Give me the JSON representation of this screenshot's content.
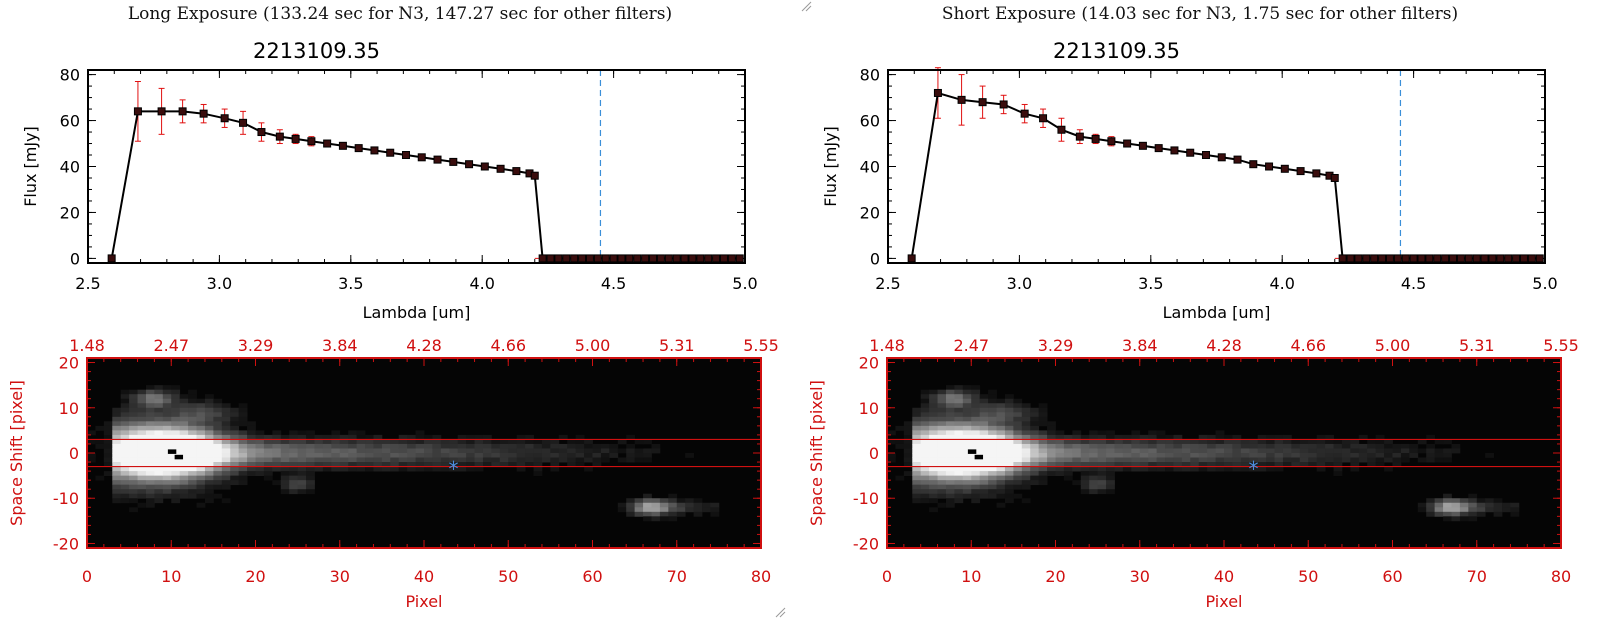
{
  "panels": [
    {
      "header": "Long Exposure (133.24 sec for N3, 147.27 sec for other filters)",
      "title": "2213109.35",
      "chart_data": {
        "type": "line",
        "xlabel": "Lambda [um]",
        "ylabel": "Flux [mJy]",
        "xlim": [
          2.5,
          5.0
        ],
        "ylim": [
          -2,
          82
        ],
        "xticks": [
          "2.5",
          "3.0",
          "3.5",
          "4.0",
          "4.5",
          "5.0"
        ],
        "yticks": [
          "0",
          "20",
          "40",
          "60",
          "80"
        ],
        "marker_line_x": 4.45,
        "series": [
          {
            "x": [
              2.59,
              2.69,
              2.78,
              2.86,
              2.94,
              3.02,
              3.09,
              3.16,
              3.23,
              3.29,
              3.35,
              3.41,
              3.47,
              3.53,
              3.59,
              3.65,
              3.71,
              3.77,
              3.83,
              3.89,
              3.95,
              4.01,
              4.07,
              4.13,
              4.18,
              4.2,
              4.23,
              4.26,
              4.29,
              4.32,
              4.35,
              4.38,
              4.41,
              4.44,
              4.47,
              4.5,
              4.53,
              4.56,
              4.59,
              4.62,
              4.65,
              4.68,
              4.71,
              4.74,
              4.77,
              4.8,
              4.83,
              4.86,
              4.89,
              4.92,
              4.95,
              4.98
            ],
            "y": [
              0,
              64,
              64,
              64,
              63,
              61,
              59,
              55,
              53,
              52,
              51,
              50,
              49,
              48,
              47,
              46,
              45,
              44,
              43,
              42,
              41,
              40,
              39,
              38,
              37,
              36,
              0,
              0,
              0,
              0,
              0,
              0,
              0,
              0,
              0,
              0,
              0,
              0,
              0,
              0,
              0,
              0,
              0,
              0,
              0,
              0,
              0,
              0,
              0,
              0,
              0,
              0
            ],
            "err": [
              0,
              13,
              10,
              5,
              4,
              4,
              5,
              4,
              3,
              2,
              2,
              1,
              1,
              1,
              1,
              1,
              1,
              1,
              1,
              1,
              1,
              1,
              1,
              1,
              1,
              1,
              0,
              0,
              0,
              0,
              0,
              0,
              0,
              0,
              0,
              0,
              0,
              0,
              0,
              0,
              0,
              0,
              0,
              0,
              0,
              0,
              0,
              0,
              0,
              0,
              0,
              0
            ]
          }
        ]
      },
      "image_plot": {
        "type": "heatmap",
        "xlabel": "Pixel",
        "ylabel": "Space Shift [pixel]",
        "xlim": [
          0,
          80
        ],
        "ylim": [
          -21,
          21
        ],
        "xticks": [
          "0",
          "10",
          "20",
          "30",
          "40",
          "50",
          "60",
          "70",
          "80"
        ],
        "yticks": [
          "20",
          "10",
          "0",
          "-10",
          "-20"
        ],
        "top_ticks": [
          "1.48",
          "2.47",
          "3.29",
          "3.84",
          "4.28",
          "4.66",
          "5.00",
          "5.31",
          "5.55"
        ],
        "aperture_lines_y": [
          3,
          -3
        ],
        "marker": {
          "x": 43.5,
          "y": -3.5,
          "symbol": "*"
        }
      }
    },
    {
      "header": "Short Exposure (14.03 sec for N3, 1.75 sec for other filters)",
      "title": "2213109.35",
      "chart_data": {
        "type": "line",
        "xlabel": "Lambda [um]",
        "ylabel": "Flux [mJy]",
        "xlim": [
          2.5,
          5.0
        ],
        "ylim": [
          -2,
          82
        ],
        "xticks": [
          "2.5",
          "3.0",
          "3.5",
          "4.0",
          "4.5",
          "5.0"
        ],
        "yticks": [
          "0",
          "20",
          "40",
          "60",
          "80"
        ],
        "marker_line_x": 4.45,
        "series": [
          {
            "x": [
              2.59,
              2.69,
              2.78,
              2.86,
              2.94,
              3.02,
              3.09,
              3.16,
              3.23,
              3.29,
              3.35,
              3.41,
              3.47,
              3.53,
              3.59,
              3.65,
              3.71,
              3.77,
              3.83,
              3.89,
              3.95,
              4.01,
              4.07,
              4.13,
              4.18,
              4.2,
              4.23,
              4.26,
              4.29,
              4.32,
              4.35,
              4.38,
              4.41,
              4.44,
              4.47,
              4.5,
              4.53,
              4.56,
              4.59,
              4.62,
              4.65,
              4.68,
              4.71,
              4.74,
              4.77,
              4.8,
              4.83,
              4.86,
              4.89,
              4.92,
              4.95,
              4.98
            ],
            "y": [
              0,
              72,
              69,
              68,
              67,
              63,
              61,
              56,
              53,
              52,
              51,
              50,
              49,
              48,
              47,
              46,
              45,
              44,
              43,
              41,
              40,
              39,
              38,
              37,
              36,
              35,
              0,
              0,
              0,
              0,
              0,
              0,
              0,
              0,
              0,
              0,
              0,
              0,
              0,
              0,
              0,
              0,
              0,
              0,
              0,
              0,
              0,
              0,
              0,
              0,
              0,
              0
            ],
            "err": [
              0,
              11,
              11,
              7,
              4,
              4,
              4,
              5,
              3,
              2,
              2,
              1,
              1,
              1,
              1,
              1,
              1,
              1,
              1,
              1,
              1,
              1,
              1,
              1,
              1,
              1,
              0,
              0,
              0,
              0,
              0,
              0,
              0,
              0,
              0,
              0,
              0,
              0,
              0,
              0,
              0,
              0,
              0,
              0,
              0,
              0,
              0,
              0,
              0,
              0,
              0,
              0
            ]
          }
        ]
      },
      "image_plot": {
        "type": "heatmap",
        "xlabel": "Pixel",
        "ylabel": "Space Shift [pixel]",
        "xlim": [
          0,
          80
        ],
        "ylim": [
          -21,
          21
        ],
        "xticks": [
          "0",
          "10",
          "20",
          "30",
          "40",
          "50",
          "60",
          "70",
          "80"
        ],
        "yticks": [
          "20",
          "10",
          "0",
          "-10",
          "-20"
        ],
        "top_ticks": [
          "1.48",
          "2.47",
          "3.29",
          "3.84",
          "4.28",
          "4.66",
          "5.00",
          "5.31",
          "5.55"
        ],
        "aperture_lines_y": [
          3,
          -3
        ],
        "marker": {
          "x": 43.5,
          "y": -3.5,
          "symbol": "*"
        }
      }
    }
  ],
  "colors": {
    "axis": "#000000",
    "line": "#000000",
    "errorbar": "#e01010",
    "red_axis": "#d01010",
    "dashed": "#3a8fd8",
    "star": "#4a8fe0"
  }
}
